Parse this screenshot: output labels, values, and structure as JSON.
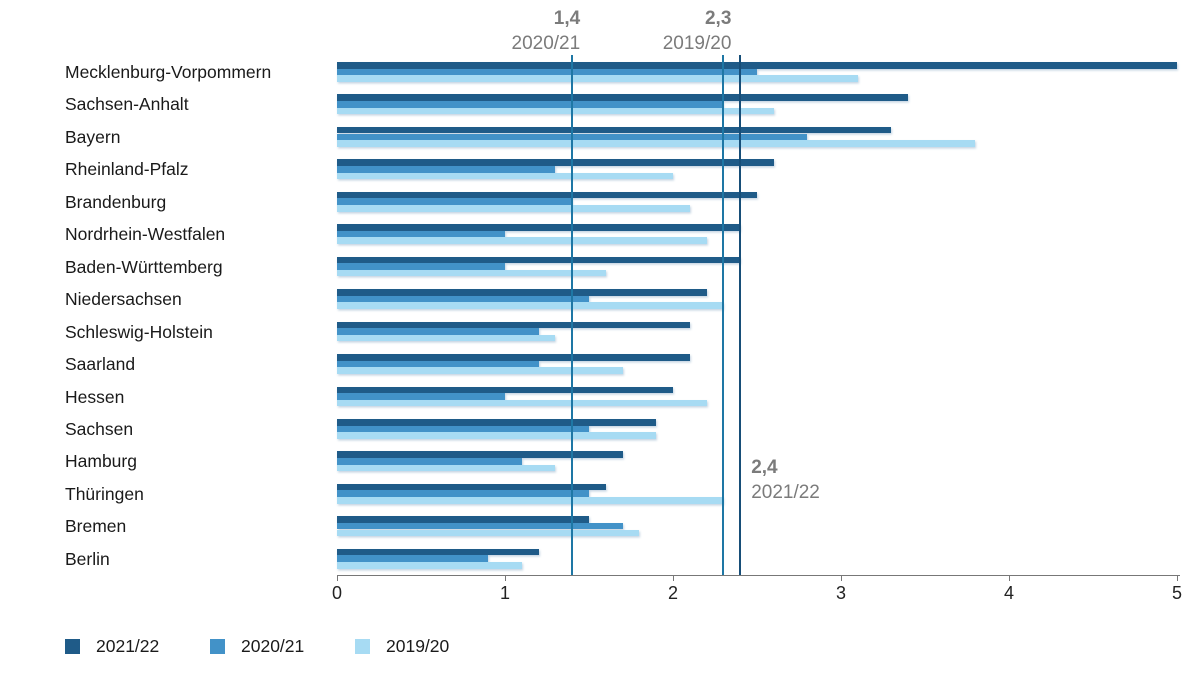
{
  "chart_data": {
    "type": "bar",
    "orientation": "horizontal",
    "title": "",
    "xlabel": "",
    "ylabel": "",
    "xlim": [
      0,
      5
    ],
    "x_ticks": [
      "0",
      "1",
      "2",
      "3",
      "4",
      "5"
    ],
    "grid": false,
    "legend_position": "bottom-left",
    "categories": [
      "Mecklenburg-Vorpommern",
      "Sachsen-Anhalt",
      "Bayern",
      "Rheinland-Pfalz",
      "Brandenburg",
      "Nordrhein-Westfalen",
      "Baden-Württemberg",
      "Niedersachsen",
      "Schleswig-Holstein",
      "Saarland",
      "Hessen",
      "Sachsen",
      "Hamburg",
      "Thüringen",
      "Bremen",
      "Berlin"
    ],
    "series": [
      {
        "name": "2021/22",
        "color": "#1f5b88",
        "values": [
          5.0,
          3.4,
          3.3,
          2.6,
          2.5,
          2.4,
          2.4,
          2.2,
          2.1,
          2.1,
          2.0,
          1.9,
          1.7,
          1.6,
          1.5,
          1.2
        ]
      },
      {
        "name": "2020/21",
        "color": "#4292c8",
        "values": [
          2.5,
          2.3,
          2.8,
          1.3,
          1.4,
          1.0,
          1.0,
          1.5,
          1.2,
          1.2,
          1.0,
          1.5,
          1.1,
          1.5,
          1.7,
          0.9
        ]
      },
      {
        "name": "2019/20",
        "color": "#a7dbf3",
        "values": [
          3.1,
          2.6,
          3.8,
          2.0,
          2.1,
          2.2,
          1.6,
          2.3,
          1.3,
          1.7,
          2.2,
          1.9,
          1.3,
          2.3,
          1.8,
          1.1
        ]
      }
    ],
    "reference_lines": [
      {
        "value": 1.4,
        "value_label": "1,4",
        "series_label": "2020/21",
        "color": "#1e77a5",
        "label_position": "top"
      },
      {
        "value": 2.3,
        "value_label": "2,3",
        "series_label": "2019/20",
        "color": "#1e77a5",
        "label_position": "top"
      },
      {
        "value": 2.4,
        "value_label": "2,4",
        "series_label": "2021/22",
        "color": "#174e78",
        "label_position": "middle-right"
      }
    ],
    "legend": [
      {
        "label": "2021/22",
        "color": "#1f5b88"
      },
      {
        "label": "2020/21",
        "color": "#4292c8"
      },
      {
        "label": "2019/20",
        "color": "#a7dbf3"
      }
    ],
    "annotation_color": "#7b7b7b"
  }
}
